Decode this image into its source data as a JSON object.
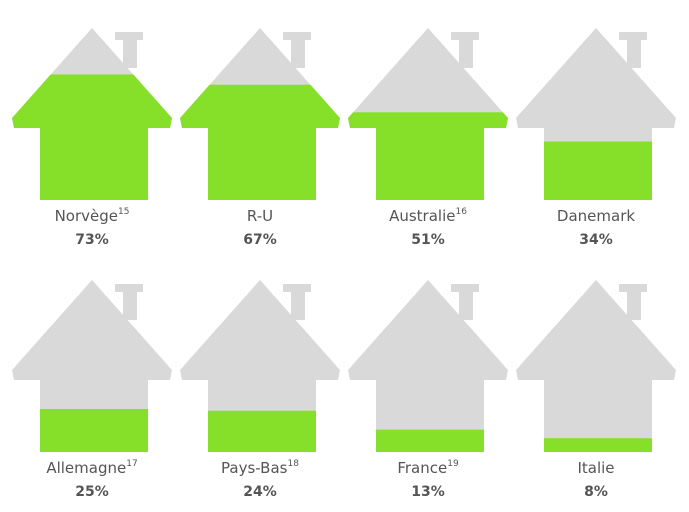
{
  "chart_data": {
    "type": "house",
    "categories": [
      "Norvège",
      "R-U",
      "Australie",
      "Danemark",
      "Allemagne",
      "Pays-Bas",
      "France",
      "Italie"
    ],
    "footnotes": [
      "15",
      null,
      "16",
      null,
      "17",
      "18",
      "19",
      null
    ],
    "values": [
      73,
      67,
      51,
      34,
      25,
      24,
      13,
      8
    ],
    "value_labels": [
      "73%",
      "67%",
      "51%",
      "34%",
      "25%",
      "24%",
      "13%",
      "8%"
    ],
    "ylim": [
      0,
      100
    ],
    "color": "#86e02a",
    "empty_color": "#d9d9d9"
  }
}
